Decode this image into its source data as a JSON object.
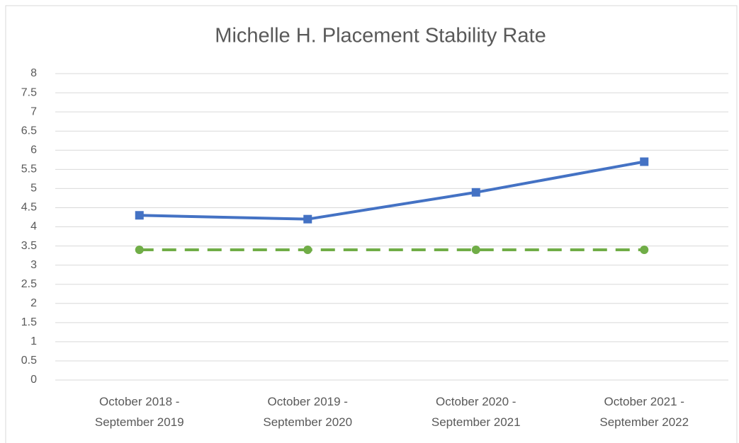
{
  "chart_data": {
    "type": "line",
    "title": "Michelle H. Placement Stability Rate",
    "categories": [
      "October 2018 - September 2019",
      "October 2019 - September 2020",
      "October 2020 - September 2021",
      "October 2021 - September 2022"
    ],
    "series": [
      {
        "color": "#4472c4",
        "marker": "square",
        "dash": false,
        "values": [
          4.3,
          4.2,
          4.9,
          5.7
        ]
      },
      {
        "color": "#70ad47",
        "marker": "circle",
        "dash": true,
        "values": [
          3.4,
          3.4,
          3.4,
          3.4
        ]
      }
    ],
    "ylim": [
      0,
      8
    ],
    "yticks": [
      0,
      0.5,
      1,
      1.5,
      2,
      2.5,
      3,
      3.5,
      4,
      4.5,
      5,
      5.5,
      6,
      6.5,
      7,
      7.5,
      8
    ],
    "grid": true
  }
}
